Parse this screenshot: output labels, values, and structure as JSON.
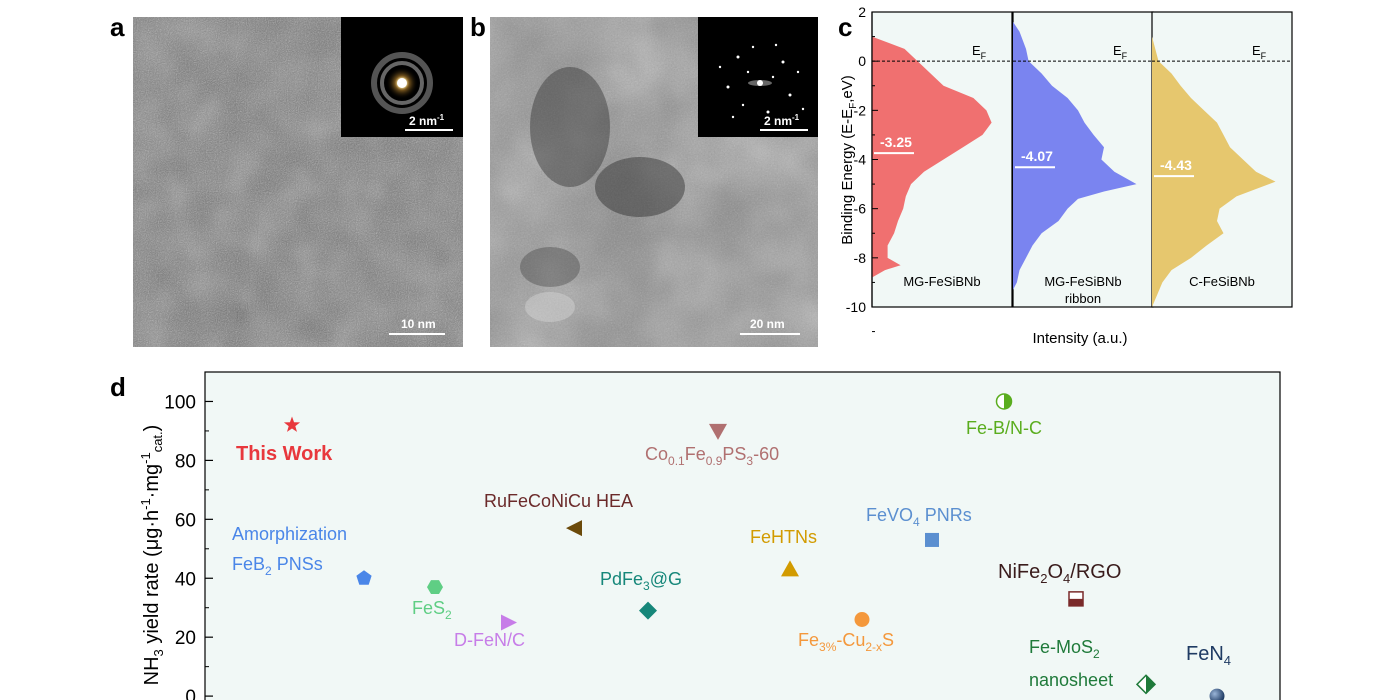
{
  "panels": {
    "a": {
      "label": "a",
      "scale_bar": "10 nm",
      "inset_scale_bar": "2 nm"
    },
    "b": {
      "label": "b",
      "scale_bar": "20 nm",
      "inset_scale_bar": "2 nm"
    },
    "c": {
      "label": "c"
    },
    "d": {
      "label": "d"
    }
  },
  "inset_scale_unit_sup": "-1",
  "chart_data": [
    {
      "type": "area",
      "panel": "c",
      "ylabel": "Binding Energy (E-E_F,eV)",
      "xlabel": "Intensity (a.u.)",
      "ylim": [
        -10,
        2
      ],
      "yticks": [
        2,
        0,
        -2,
        -4,
        -6,
        -8,
        -10
      ],
      "fermi_label": "E_F",
      "series": [
        {
          "name": "MG-FeSiBNb",
          "name_line2": "",
          "d_band_center": "-3.25",
          "d_band_value": -3.25,
          "color": "#f07070"
        },
        {
          "name": "MG-FeSiBNb",
          "name_line2": "ribbon",
          "d_band_center": "-4.07",
          "d_band_value": -4.07,
          "color": "#7a84f0"
        },
        {
          "name": "C-FeSiBNb",
          "name_line2": "",
          "d_band_center": "-4.43",
          "d_band_value": -4.43,
          "color": "#e6c76e"
        }
      ]
    },
    {
      "type": "scatter",
      "panel": "d",
      "ylabel": "NH3 yield rate (μg·h-1·mg-1cat.)",
      "ylim": [
        -2,
        110
      ],
      "yticks": [
        0,
        20,
        40,
        60,
        80,
        100
      ],
      "points": [
        {
          "label": "This Work",
          "x": 1,
          "y": 92,
          "color": "#e8383d",
          "marker": "star"
        },
        {
          "label": "Amorphization FeB2 PNSs",
          "x": 2,
          "y": 40,
          "color": "#4a86e8",
          "marker": "pentagon"
        },
        {
          "label": "FeS2",
          "x": 3,
          "y": 37,
          "color": "#5fce84",
          "marker": "hexagon"
        },
        {
          "label": "D-FeN/C",
          "x": 4,
          "y": 25,
          "color": "#c77de8",
          "marker": "triangle-right"
        },
        {
          "label": "RuFeCoNiCu HEA",
          "x": 5,
          "y": 57,
          "color": "#6b4a0a",
          "marker": "triangle-left"
        },
        {
          "label": "PdFe3@G",
          "x": 6,
          "y": 29,
          "color": "#16877a",
          "marker": "diamond"
        },
        {
          "label": "Co0.1Fe0.9PS3-60",
          "x": 7,
          "y": 90,
          "color": "#b07070",
          "marker": "triangle-down"
        },
        {
          "label": "FeHTNs",
          "x": 8,
          "y": 43,
          "color": "#d29b00",
          "marker": "triangle-up"
        },
        {
          "label": "Fe3%-Cu2-xS",
          "x": 9,
          "y": 26,
          "color": "#f4983c",
          "marker": "circle"
        },
        {
          "label": "FeVO4 PNRs",
          "x": 10,
          "y": 53,
          "color": "#5b8fd0",
          "marker": "square"
        },
        {
          "label": "Fe-B/N-C",
          "x": 11,
          "y": 100,
          "color": "#5aad1e",
          "marker": "half-circle"
        },
        {
          "label": "NiFe2O4/RGO",
          "x": 12,
          "y": 33,
          "color": "#7a2a2a",
          "marker": "half-square"
        },
        {
          "label": "Fe-MoS2 nanosheet",
          "x": 13,
          "y": 4,
          "color": "#1f7a3a",
          "marker": "half-diamond"
        },
        {
          "label": "FeN4",
          "x": 14,
          "y": 0,
          "color": "#1f3b63",
          "marker": "sphere"
        }
      ]
    }
  ],
  "text": {
    "c_ylabel_main": "Binding Energy (E-E",
    "c_ylabel_sub": "F",
    "c_ylabel_end": ",eV)",
    "c_xlabel": "Intensity (a.u.)",
    "ef_main": "E",
    "ef_sub": "F",
    "d_ylabel_nh": "NH",
    "d_ylabel_3": "3",
    "d_ylabel_mid": " yield rate (μg·h",
    "d_ylabel_m1": "-1",
    "d_ylabel_dot": "·mg",
    "d_ylabel_m1b": "-1",
    "d_ylabel_cat": "cat.",
    "d_ylabel_close": ")",
    "this_work": "This Work",
    "amorph_1": "Amorphization",
    "amorph_2a": "FeB",
    "amorph_2b": "2",
    "amorph_2c": " PNSs",
    "fes_a": "FeS",
    "fes_b": "2",
    "dfenc": "D-FeN/C",
    "rufe": "RuFeCoNiCu HEA",
    "pdfe_a": "PdFe",
    "pdfe_b": "3",
    "pdfe_c": "@G",
    "co_a": "Co",
    "co_b": "0.1",
    "co_c": "Fe",
    "co_d": "0.9",
    "co_e": "PS",
    "co_f": "3",
    "co_g": "-60",
    "fehtns": "FeHTNs",
    "fecu_a": "Fe",
    "fecu_b": "3%",
    "fecu_c": "-Cu",
    "fecu_d": "2-x",
    "fecu_e": "S",
    "fevo_a": "FeVO",
    "fevo_b": "4",
    "fevo_c": " PNRs",
    "febnc": "Fe-B/N-C",
    "nife_a": "NiFe",
    "nife_b": "2",
    "nife_c": "O",
    "nife_d": "4",
    "nife_e": "/RGO",
    "femos_a": "Fe-MoS",
    "femos_b": "2",
    "femos_c": "nanosheet",
    "fen_a": "FeN",
    "fen_b": "4"
  }
}
